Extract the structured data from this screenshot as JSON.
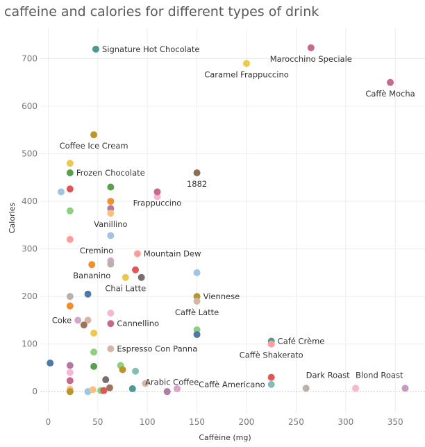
{
  "chart_data": {
    "type": "scatter",
    "title": "caffeine and calories for different types of drink",
    "xlabel": "Caffèine (mg)",
    "ylabel": "Calories",
    "xlim": [
      -8,
      380
    ],
    "ylim": [
      -45,
      765
    ],
    "x_ticks": [
      0,
      50,
      100,
      150,
      200,
      250,
      300,
      350
    ],
    "y_ticks": [
      0,
      100,
      200,
      300,
      400,
      500,
      600,
      700
    ],
    "grid": true,
    "points": [
      {
        "x": 48,
        "y": 720,
        "color": "#4e9a92",
        "label": "Signature Hot Chocolate",
        "lpos": "right"
      },
      {
        "x": 265,
        "y": 723,
        "color": "#c46a8e",
        "label": "Marocchino Speciale",
        "lpos": "below"
      },
      {
        "x": 200,
        "y": 690,
        "color": "#ecc94b",
        "label": "Caramel Frappuccino",
        "lpos": "below"
      },
      {
        "x": 345,
        "y": 650,
        "color": "#c46a8e",
        "label": "Caffè Mocha",
        "lpos": "below"
      },
      {
        "x": 46,
        "y": 540,
        "color": "#b8962e",
        "label": "Coffee Ice Cream",
        "lpos": "below"
      },
      {
        "x": 22,
        "y": 480,
        "color": "#ecc94b",
        "label": "",
        "lpos": "none"
      },
      {
        "x": 22,
        "y": 460,
        "color": "#59a14f",
        "label": "Frozen Chocolate",
        "lpos": "right"
      },
      {
        "x": 150,
        "y": 460,
        "color": "#8a7051",
        "label": "1882",
        "lpos": "below"
      },
      {
        "x": 13,
        "y": 420,
        "color": "#9ec5e5",
        "label": "",
        "lpos": "none"
      },
      {
        "x": 22,
        "y": 426,
        "color": "#e15759",
        "label": "",
        "lpos": "none"
      },
      {
        "x": 63,
        "y": 430,
        "color": "#59a14f",
        "label": "",
        "lpos": "none"
      },
      {
        "x": 110,
        "y": 410,
        "color": "#f7b6d2",
        "label": "",
        "lpos": "none"
      },
      {
        "x": 110,
        "y": 420,
        "color": "#c46a8e",
        "label": "Frappuccino",
        "lpos": "below"
      },
      {
        "x": 63,
        "y": 400,
        "color": "#f28e2b",
        "label": "",
        "lpos": "none"
      },
      {
        "x": 22,
        "y": 380,
        "color": "#8cd17d",
        "label": "",
        "lpos": "none"
      },
      {
        "x": 63,
        "y": 385,
        "color": "#b07aa1",
        "label": "",
        "lpos": "none"
      },
      {
        "x": 63,
        "y": 375,
        "color": "#ffbe7d",
        "label": "Vanillino",
        "lpos": "below"
      },
      {
        "x": 63,
        "y": 328,
        "color": "#9ec5e5",
        "label": "",
        "lpos": "none"
      },
      {
        "x": 22,
        "y": 320,
        "color": "#ff9d9a",
        "label": "Cremino",
        "lpos": "below-right"
      },
      {
        "x": 90,
        "y": 290,
        "color": "#ff9d9a",
        "label": "Mountain Dew",
        "lpos": "right"
      },
      {
        "x": 63,
        "y": 275,
        "color": "#d4a6c8",
        "label": "",
        "lpos": "none"
      },
      {
        "x": 63,
        "y": 268,
        "color": "#bab0ac",
        "label": "",
        "lpos": "none"
      },
      {
        "x": 44,
        "y": 267,
        "color": "#f28e2b",
        "label": "Bananino",
        "lpos": "below"
      },
      {
        "x": 88,
        "y": 256,
        "color": "#e15759",
        "label": "",
        "lpos": "none"
      },
      {
        "x": 78,
        "y": 240,
        "color": "#ecc94b",
        "label": "Chai Latte",
        "lpos": "below"
      },
      {
        "x": 94,
        "y": 240,
        "color": "#79706e",
        "label": "",
        "lpos": "none"
      },
      {
        "x": 150,
        "y": 250,
        "color": "#9ec5e5",
        "label": "",
        "lpos": "none"
      },
      {
        "x": 40,
        "y": 205,
        "color": "#4e79a7",
        "label": "",
        "lpos": "none"
      },
      {
        "x": 22,
        "y": 200,
        "color": "#bab0ac",
        "label": "",
        "lpos": "none"
      },
      {
        "x": 150,
        "y": 200,
        "color": "#b8962e",
        "label": "Viennese",
        "lpos": "right"
      },
      {
        "x": 150,
        "y": 190,
        "color": "#d7b5a6",
        "label": "Caffè Latte",
        "lpos": "below"
      },
      {
        "x": 22,
        "y": 180,
        "color": "#f28e2b",
        "label": "",
        "lpos": "none"
      },
      {
        "x": 63,
        "y": 165,
        "color": "#f7b6d2",
        "label": "",
        "lpos": "none"
      },
      {
        "x": 30,
        "y": 150,
        "color": "#d4a6c8",
        "label": "Coke",
        "lpos": "left"
      },
      {
        "x": 40,
        "y": 150,
        "color": "#d7b5a6",
        "label": "",
        "lpos": "none"
      },
      {
        "x": 36,
        "y": 140,
        "color": "#9c755f",
        "label": "",
        "lpos": "none"
      },
      {
        "x": 63,
        "y": 143,
        "color": "#c46a8e",
        "label": "Cannellino",
        "lpos": "right"
      },
      {
        "x": 150,
        "y": 130,
        "color": "#8cd17d",
        "label": "",
        "lpos": "none"
      },
      {
        "x": 46,
        "y": 123,
        "color": "#ecc94b",
        "label": "",
        "lpos": "none"
      },
      {
        "x": 150,
        "y": 120,
        "color": "#4e79a7",
        "label": "",
        "lpos": "none"
      },
      {
        "x": 225,
        "y": 106,
        "color": "#4e9a92",
        "label": "Café Crème",
        "lpos": "right"
      },
      {
        "x": 225,
        "y": 100,
        "color": "#ff9d9a",
        "label": "Caffè Shakerato",
        "lpos": "below"
      },
      {
        "x": 63,
        "y": 90,
        "color": "#d7b5a6",
        "label": "Espresso Con Panna",
        "lpos": "right"
      },
      {
        "x": 46,
        "y": 83,
        "color": "#8cd17d",
        "label": "",
        "lpos": "none"
      },
      {
        "x": 2,
        "y": 60,
        "color": "#4e79a7",
        "label": "",
        "lpos": "none"
      },
      {
        "x": 22,
        "y": 55,
        "color": "#b07aa1",
        "label": "",
        "lpos": "none"
      },
      {
        "x": 46,
        "y": 53,
        "color": "#59a14f",
        "label": "",
        "lpos": "none"
      },
      {
        "x": 73,
        "y": 55,
        "color": "#8cd17d",
        "label": "",
        "lpos": "none"
      },
      {
        "x": 75,
        "y": 46,
        "color": "#b8962e",
        "label": "",
        "lpos": "none"
      },
      {
        "x": 88,
        "y": 43,
        "color": "#86bcb6",
        "label": "Arabic Coffee",
        "lpos": "below-right"
      },
      {
        "x": 22,
        "y": 40,
        "color": "#f7b6d2",
        "label": "",
        "lpos": "none"
      },
      {
        "x": 22,
        "y": 23,
        "color": "#c46a8e",
        "label": "",
        "lpos": "none"
      },
      {
        "x": 58,
        "y": 25,
        "color": "#79706e",
        "label": "",
        "lpos": "none"
      },
      {
        "x": 98,
        "y": 17,
        "color": "#d7b5a6",
        "label": "",
        "lpos": "none"
      },
      {
        "x": 225,
        "y": 30,
        "color": "#e15759",
        "label": "",
        "lpos": "none"
      },
      {
        "x": 225,
        "y": 15,
        "color": "#86bcb6",
        "label": "Caffè Americano",
        "lpos": "left"
      },
      {
        "x": 260,
        "y": 7,
        "color": "#bab0ac",
        "label": "Dark Roast",
        "lpos": "above-right"
      },
      {
        "x": 310,
        "y": 7,
        "color": "#f7b6d2",
        "label": "Blond Roast",
        "lpos": "above-right"
      },
      {
        "x": 360,
        "y": 7,
        "color": "#c49ac0",
        "label": "",
        "lpos": "none"
      },
      {
        "x": 22,
        "y": 5,
        "color": "#ffbe7d",
        "label": "",
        "lpos": "none"
      },
      {
        "x": 22,
        "y": 0,
        "color": "#b8962e",
        "label": "",
        "lpos": "none"
      },
      {
        "x": 40,
        "y": 0,
        "color": "#9ec5e5",
        "label": "",
        "lpos": "none"
      },
      {
        "x": 45,
        "y": 4,
        "color": "#ffbe7d",
        "label": "",
        "lpos": "none"
      },
      {
        "x": 53,
        "y": 2,
        "color": "#8cd17d",
        "label": "",
        "lpos": "none"
      },
      {
        "x": 56,
        "y": 2,
        "color": "#e15759",
        "label": "",
        "lpos": "none"
      },
      {
        "x": 62,
        "y": 8,
        "color": "#9c755f",
        "label": "",
        "lpos": "none"
      },
      {
        "x": 85,
        "y": 6,
        "color": "#4e9a92",
        "label": "",
        "lpos": "none"
      },
      {
        "x": 120,
        "y": 0,
        "color": "#b07aa1",
        "label": "",
        "lpos": "none"
      },
      {
        "x": 130,
        "y": 6,
        "color": "#d4a6c8",
        "label": "",
        "lpos": "none"
      }
    ]
  }
}
